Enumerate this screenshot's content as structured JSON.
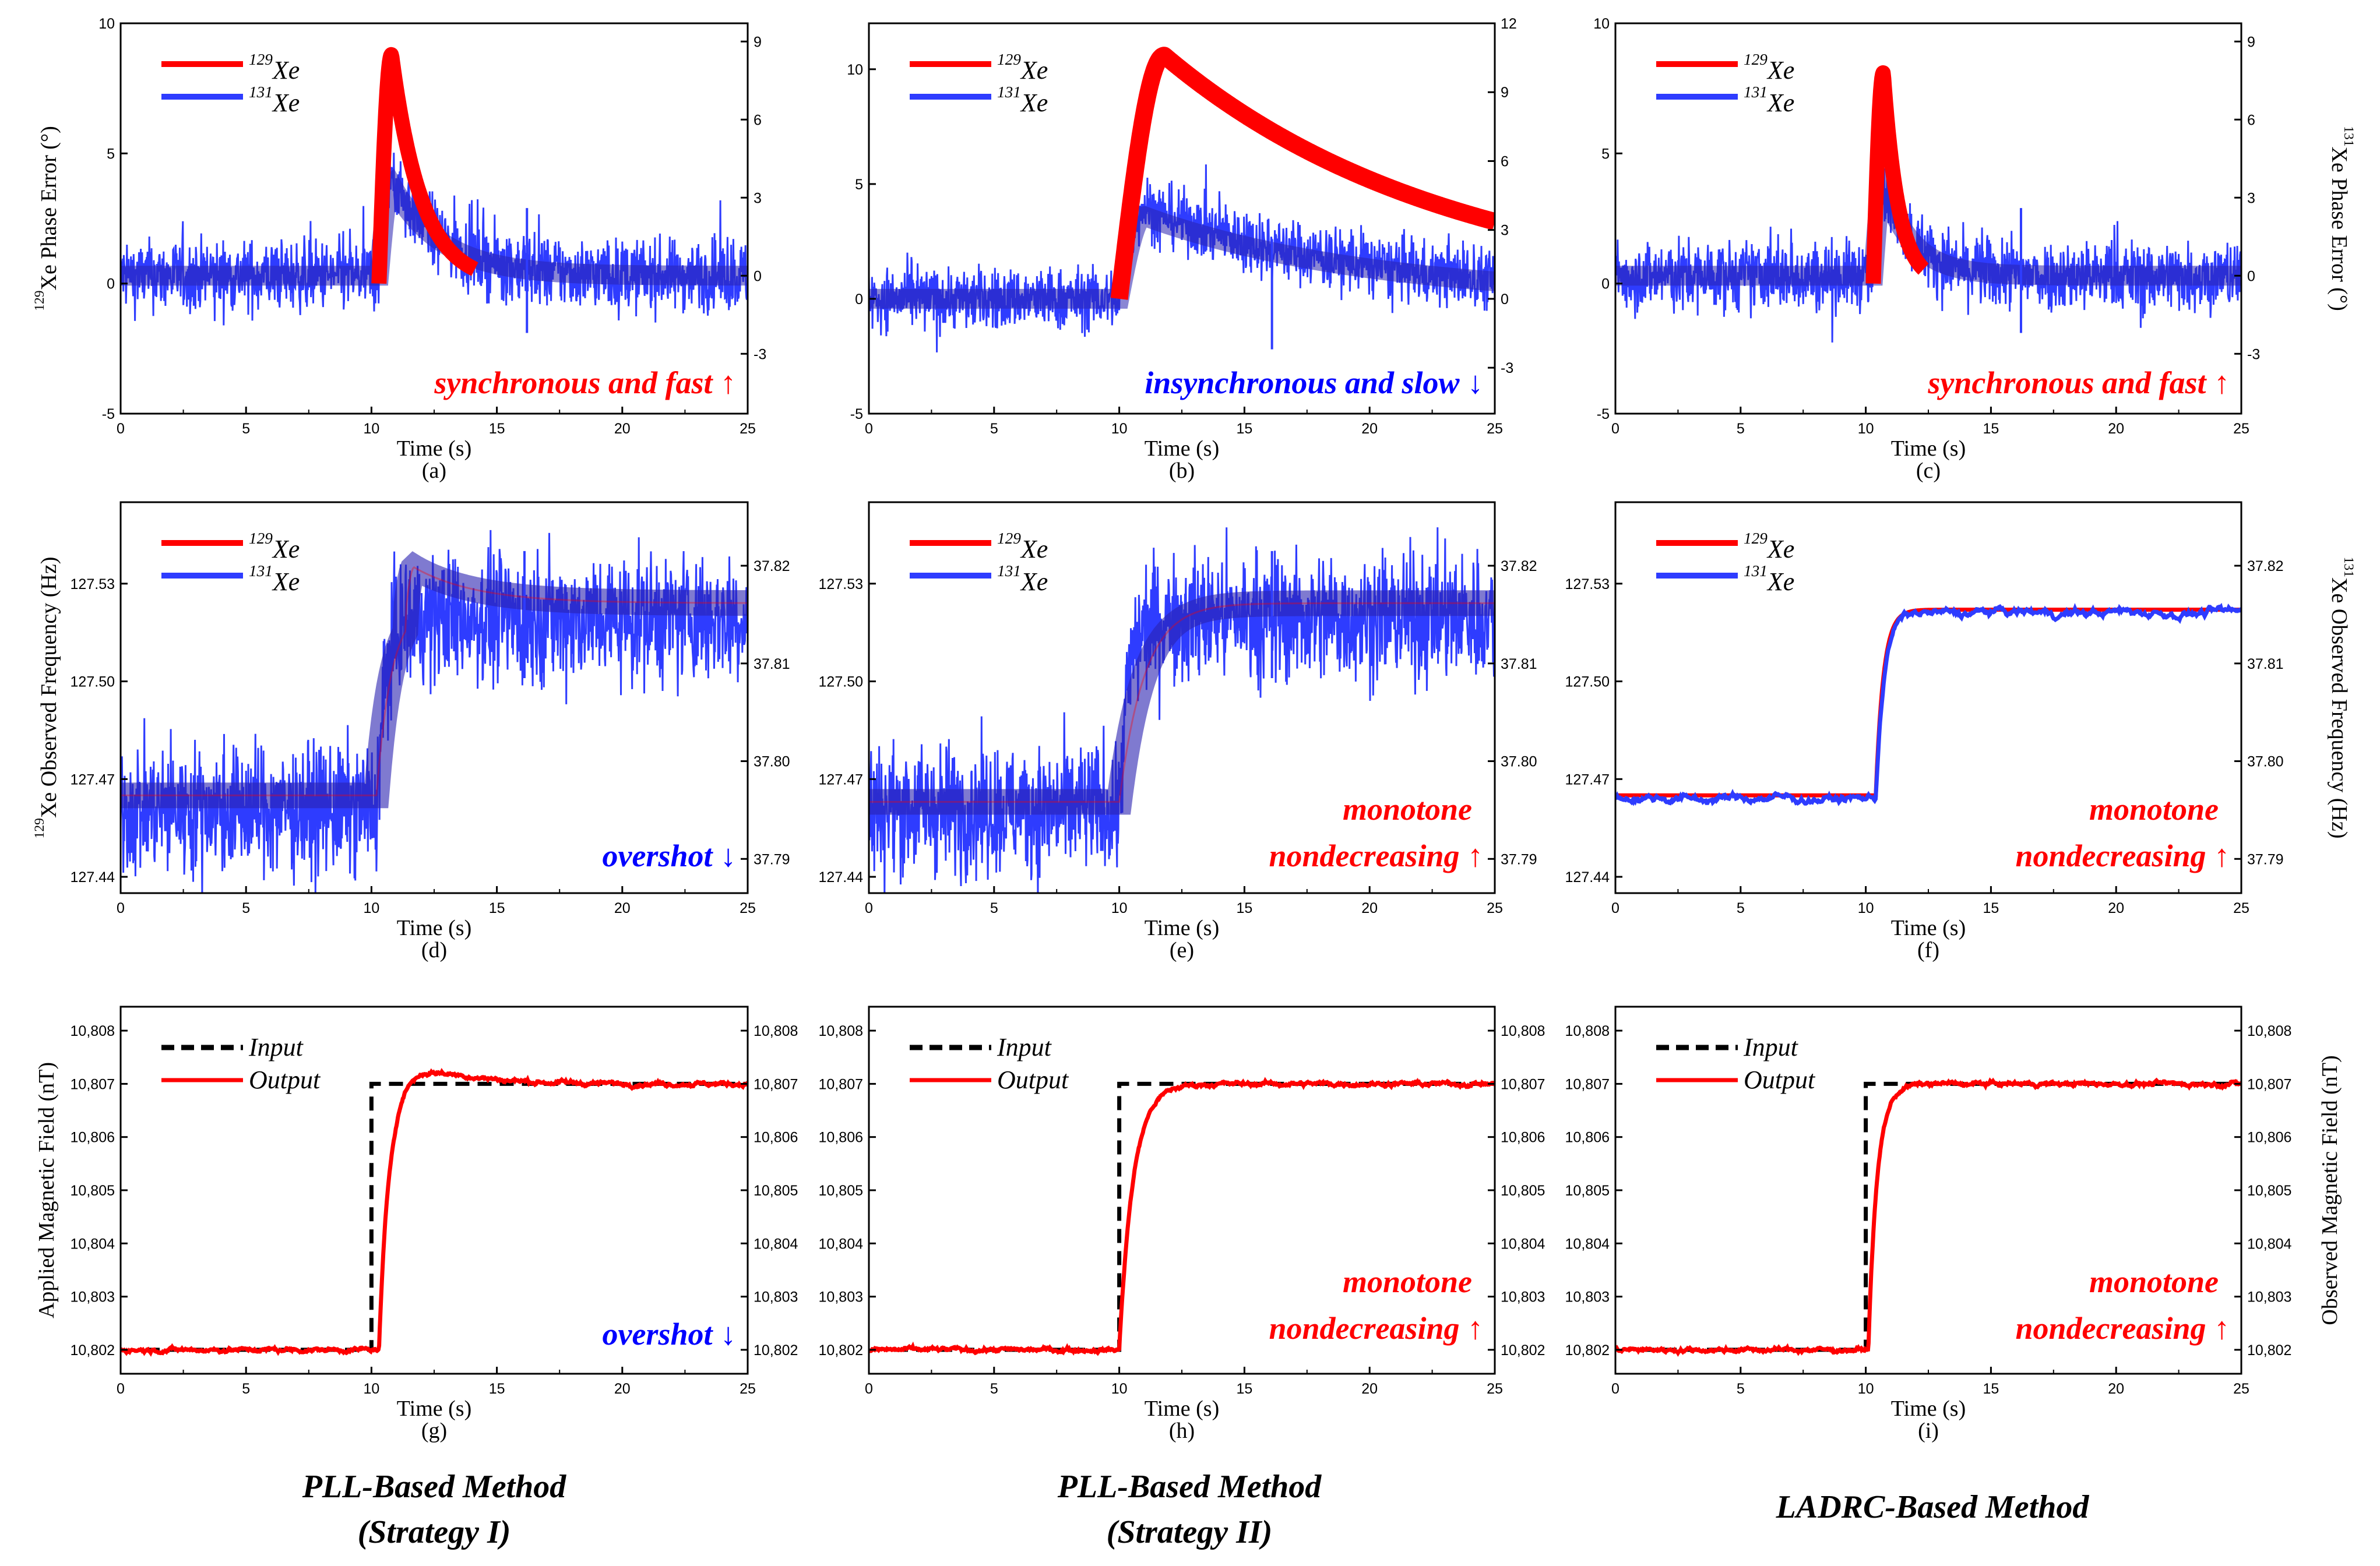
{
  "colors": {
    "xe129": "#ff0000",
    "xe131": "#2e3cff",
    "overlap": "#2a22b0",
    "input": "#000000",
    "output": "#ff0000",
    "ann_red": "#ff0000",
    "ann_blue": "#0000ff"
  },
  "captions": [
    "PLL-Based Method",
    "(Strategy I)",
    "PLL-Based Method",
    "(Strategy II)",
    "LADRC-Based Method"
  ],
  "chart_data": [
    {
      "id": "a",
      "type": "line",
      "label": "(a)",
      "xlabel": "Time (s)",
      "ylabel": "129Xe Phase Error (°)",
      "ylabel_sup": "129",
      "ylabel_main": "Xe Phase Error (°)",
      "xlim": [
        0,
        25
      ],
      "ylim": [
        -5,
        10
      ],
      "ylim_right": [
        -5.3,
        9.7
      ],
      "xticks": [
        "0",
        "5",
        "10",
        "15",
        "20",
        "25"
      ],
      "yticks": [
        "-5",
        "0",
        "5",
        "10"
      ],
      "yticks_right": [
        "-3",
        "0",
        "3",
        "6",
        "9"
      ],
      "legend": [
        {
          "sup": "129",
          "name": "Xe"
        },
        {
          "sup": "131",
          "name": "Xe"
        }
      ],
      "annotation": "synchronous and fast ↑",
      "annotation_color": "red",
      "series": [
        {
          "name": "129Xe",
          "axis": "left",
          "step_time": 10.3,
          "baseline": 0,
          "noise": 1.1,
          "peak": 8.8,
          "peak_time": 10.8,
          "decay_tau": 1.2,
          "band": 0.35
        },
        {
          "name": "131Xe",
          "axis": "right",
          "step_time": 10.3,
          "baseline": 0,
          "noise": 1.2,
          "peak": 3.9,
          "peak_time": 10.8,
          "decay_tau": 2.0,
          "spike_time": 16.2
        }
      ]
    },
    {
      "id": "b",
      "type": "line",
      "label": "(b)",
      "xlabel": "Time (s)",
      "ylabel": "",
      "xlim": [
        0,
        25
      ],
      "ylim": [
        -5,
        12
      ],
      "ylim_right": [
        -5,
        12
      ],
      "xticks": [
        "0",
        "5",
        "10",
        "15",
        "20",
        "25"
      ],
      "yticks": [
        "-5",
        "0",
        "5",
        "10"
      ],
      "yticks_right": [
        "-3",
        "0",
        "3",
        "6",
        "9",
        "12"
      ],
      "legend": [
        {
          "sup": "129",
          "name": "Xe"
        },
        {
          "sup": "131",
          "name": "Xe"
        }
      ],
      "annotation": "insynchronous and slow ↓",
      "annotation_color": "blue",
      "series": [
        {
          "name": "129Xe",
          "axis": "left",
          "step_time": 10.0,
          "baseline": 0,
          "noise": 0.9,
          "peak": 10.6,
          "peak_time": 11.8,
          "decay_tau": 11.5,
          "band": 0.5
        },
        {
          "name": "131Xe",
          "axis": "right",
          "step_time": 10.0,
          "baseline": 0,
          "noise": 1.2,
          "peak": 4.0,
          "peak_time": 11.0,
          "decay_tau": 9.0,
          "spike_time": 16.1
        }
      ]
    },
    {
      "id": "c",
      "type": "line",
      "label": "(c)",
      "xlabel": "Time (s)",
      "ylabel": "131Xe Phase Error (°)",
      "ylabel_sup": "131",
      "ylabel_main": "Xe Phase Error (°)",
      "xlim": [
        0,
        25
      ],
      "ylim": [
        -5,
        10
      ],
      "ylim_right": [
        -5.3,
        9.7
      ],
      "xticks": [
        "0",
        "5",
        "10",
        "15",
        "20",
        "25"
      ],
      "yticks": [
        "-5",
        "0",
        "5",
        "10"
      ],
      "yticks_right": [
        "-3",
        "0",
        "3",
        "6",
        "9"
      ],
      "legend": [
        {
          "sup": "129",
          "name": "Xe"
        },
        {
          "sup": "131",
          "name": "Xe"
        }
      ],
      "annotation": "synchronous and fast ↑",
      "annotation_color": "red",
      "series": [
        {
          "name": "129Xe",
          "axis": "left",
          "step_time": 10.3,
          "baseline": 0,
          "noise": 1.1,
          "peak": 8.1,
          "peak_time": 10.7,
          "decay_tau": 0.6,
          "band": 0.35
        },
        {
          "name": "131Xe",
          "axis": "right",
          "step_time": 10.3,
          "baseline": 0,
          "noise": 1.2,
          "peak": 3.8,
          "peak_time": 10.7,
          "decay_tau": 1.2,
          "spike_time": 16.2
        }
      ]
    },
    {
      "id": "d",
      "type": "line",
      "label": "(d)",
      "xlabel": "Time (s)",
      "ylabel": "129Xe Observed Frequency (Hz)",
      "ylabel_sup": "129",
      "ylabel_main": "Xe Observed Frequency (Hz)",
      "xlim": [
        0,
        25
      ],
      "ylim": [
        127.435,
        127.555
      ],
      "ylim_right": [
        37.7865,
        37.8265
      ],
      "xticks": [
        "0",
        "5",
        "10",
        "15",
        "20",
        "25"
      ],
      "yticks": [
        "127.44",
        "127.47",
        "127.50",
        "127.53"
      ],
      "yticks_right": [
        "37.79",
        "37.80",
        "37.81",
        "37.82"
      ],
      "legend": [
        {
          "sup": "129",
          "name": "Xe"
        },
        {
          "sup": "131",
          "name": "Xe"
        }
      ],
      "annotation": "overshot ↓",
      "annotation_color": "blue",
      "series": [
        {
          "name": "129Xe",
          "axis": "left",
          "step_time": 10.2,
          "start": 127.465,
          "end": 127.524,
          "overshoot": 127.535,
          "rise": 0.6,
          "settle": 2.5
        },
        {
          "name": "131Xe",
          "axis": "right",
          "step_time": 10.2,
          "start": 37.7951,
          "end": 37.8147,
          "noise": 0.0065,
          "spike_time": 16.1
        }
      ]
    },
    {
      "id": "e",
      "type": "line",
      "label": "(e)",
      "xlabel": "Time (s)",
      "ylabel": "",
      "xlim": [
        0,
        25
      ],
      "ylim": [
        127.435,
        127.555
      ],
      "ylim_right": [
        37.7865,
        37.8265
      ],
      "xticks": [
        "0",
        "5",
        "10",
        "15",
        "20",
        "25"
      ],
      "yticks": [
        "127.44",
        "127.47",
        "127.50",
        "127.53"
      ],
      "yticks_right": [
        "37.79",
        "37.80",
        "37.81",
        "37.82"
      ],
      "legend": [
        {
          "sup": "129",
          "name": "Xe"
        },
        {
          "sup": "131",
          "name": "Xe"
        }
      ],
      "annotation": "monotone nondecreasing ↑",
      "annotation_lines": [
        "monotone",
        "nondecreasing ↑"
      ],
      "annotation_color": "red",
      "series": [
        {
          "name": "129Xe",
          "axis": "left",
          "step_time": 10.0,
          "start": 127.463,
          "end": 127.524,
          "rise": 1.0
        },
        {
          "name": "131Xe",
          "axis": "right",
          "step_time": 10.0,
          "start": 37.7951,
          "end": 37.8147,
          "noise": 0.0065,
          "spike_time": 16.1
        }
      ]
    },
    {
      "id": "f",
      "type": "line",
      "label": "(f)",
      "xlabel": "Time (s)",
      "ylabel": "131Xe Observed Frequency (Hz)",
      "ylabel_sup": "131",
      "ylabel_main": "Xe Observed Frequency (Hz)",
      "xlim": [
        0,
        25
      ],
      "ylim": [
        127.435,
        127.555
      ],
      "ylim_right": [
        37.7865,
        37.8265
      ],
      "xticks": [
        "0",
        "5",
        "10",
        "15",
        "20",
        "25"
      ],
      "yticks": [
        "127.44",
        "127.47",
        "127.50",
        "127.53"
      ],
      "yticks_right": [
        "37.79",
        "37.80",
        "37.81",
        "37.82"
      ],
      "legend": [
        {
          "sup": "129",
          "name": "Xe"
        },
        {
          "sup": "131",
          "name": "Xe"
        }
      ],
      "annotation": "monotone nondecreasing ↑",
      "annotation_lines": [
        "monotone",
        "nondecreasing ↑"
      ],
      "annotation_color": "red",
      "series": [
        {
          "name": "129Xe",
          "axis": "left",
          "step_time": 10.4,
          "start": 127.465,
          "end": 127.522,
          "rise": 0.3
        },
        {
          "name": "131Xe",
          "axis": "right",
          "step_time": 10.4,
          "start": 37.7962,
          "end": 37.8152,
          "noise": 0.0003
        }
      ]
    },
    {
      "id": "g",
      "type": "line",
      "label": "(g)",
      "xlabel": "Time (s)",
      "ylabel": "Applied Magnetic Field (nT)",
      "xlim": [
        0,
        25
      ],
      "ylim": [
        10801.55,
        10808.45
      ],
      "xticks": [
        "0",
        "5",
        "10",
        "15",
        "20",
        "25"
      ],
      "yticks": [
        "10,802",
        "10,803",
        "10,804",
        "10,805",
        "10,806",
        "10,807",
        "10,808"
      ],
      "yticks_right": [
        "10,802",
        "10,803",
        "10,804",
        "10,805",
        "10,806",
        "10,807",
        "10,808"
      ],
      "legend": [
        {
          "name": "Input"
        },
        {
          "name": "Output"
        }
      ],
      "annotation": "overshot ↓",
      "annotation_color": "blue",
      "series": [
        {
          "name": "Input",
          "style": "dashed",
          "step_time": 10.0,
          "start": 10802,
          "end": 10807
        },
        {
          "name": "Output",
          "step_time": 10.0,
          "start": 10802,
          "end": 10807,
          "overshoot": 10807.8,
          "peak_time": 11.8,
          "settle": 1.8,
          "delay": 0.3
        }
      ]
    },
    {
      "id": "h",
      "type": "line",
      "label": "(h)",
      "xlabel": "Time (s)",
      "ylabel": "",
      "xlim": [
        0,
        25
      ],
      "ylim": [
        10801.55,
        10808.45
      ],
      "xticks": [
        "0",
        "5",
        "10",
        "15",
        "20",
        "25"
      ],
      "yticks": [
        "10,802",
        "10,803",
        "10,804",
        "10,805",
        "10,806",
        "10,807",
        "10,808"
      ],
      "yticks_right": [
        "10,802",
        "10,803",
        "10,804",
        "10,805",
        "10,806",
        "10,807",
        "10,808"
      ],
      "legend": [
        {
          "name": "Input"
        },
        {
          "name": "Output"
        }
      ],
      "annotation": "monotone nondecreasing ↑",
      "annotation_lines": [
        "monotone",
        "nondecreasing ↑"
      ],
      "annotation_color": "red",
      "series": [
        {
          "name": "Input",
          "style": "dashed",
          "step_time": 10.0,
          "start": 10802,
          "end": 10807
        },
        {
          "name": "Output",
          "step_time": 10.0,
          "start": 10802,
          "end": 10807,
          "delay": 0.0,
          "rise": 0.55
        }
      ]
    },
    {
      "id": "i",
      "type": "line",
      "label": "(i)",
      "xlabel": "Time (s)",
      "ylabel": "Observed Magnetic Field (nT)",
      "xlim": [
        0,
        25
      ],
      "ylim": [
        10801.55,
        10808.45
      ],
      "xticks": [
        "0",
        "5",
        "10",
        "15",
        "20",
        "25"
      ],
      "yticks": [
        "10,802",
        "10,803",
        "10,804",
        "10,805",
        "10,806",
        "10,807",
        "10,808"
      ],
      "yticks_right": [
        "10,802",
        "10,803",
        "10,804",
        "10,805",
        "10,806",
        "10,807",
        "10,808"
      ],
      "legend": [
        {
          "name": "Input"
        },
        {
          "name": "Output"
        }
      ],
      "annotation": "monotone nondecreasing ↑",
      "annotation_lines": [
        "monotone",
        "nondecreasing ↑"
      ],
      "annotation_color": "red",
      "series": [
        {
          "name": "Input",
          "style": "dashed",
          "step_time": 10.0,
          "start": 10802,
          "end": 10807
        },
        {
          "name": "Output",
          "step_time": 10.0,
          "start": 10802,
          "end": 10807,
          "delay": 0.1,
          "rise": 0.35
        }
      ]
    }
  ]
}
